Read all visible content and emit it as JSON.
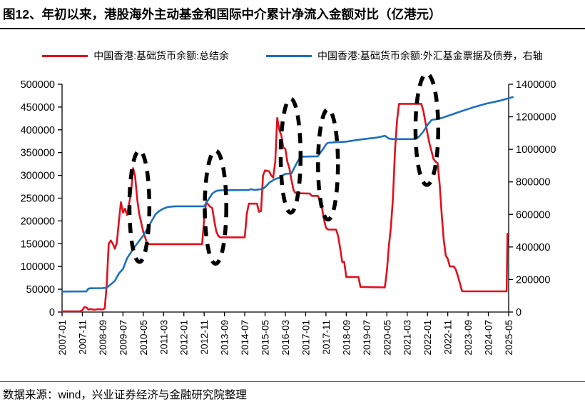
{
  "title": "图12、年初以来，港股海外主动基金和国际中介累计净流入金额对比（亿港元）",
  "footer": {
    "source": "数据来源：wind，兴业证券经济与金融研究院整理"
  },
  "legend": [
    {
      "label": "中国香港:基础货币余额:总结余",
      "color": "#e0101c"
    },
    {
      "label": "中国香港:基础货币余额:外汇基金票据及债券，右轴",
      "color": "#1d6fc0"
    }
  ],
  "chart_data": {
    "type": "line",
    "x_unit": "months since 2007-01",
    "x_tick_months": [
      0,
      10,
      20,
      30,
      40,
      50,
      60,
      70,
      80,
      90,
      100,
      110,
      120,
      130,
      140,
      150,
      160,
      170,
      180,
      190,
      200,
      210,
      220
    ],
    "x_tick_labels": [
      "2007-01",
      "2007-11",
      "2008-09",
      "2009-07",
      "2010-05",
      "2011-03",
      "2012-01",
      "2012-11",
      "2013-09",
      "2014-07",
      "2015-05",
      "2016-03",
      "2017-01",
      "2017-11",
      "2018-09",
      "2019-07",
      "2020-05",
      "2021-03",
      "2022-01",
      "2022-11",
      "2023-09",
      "2024-07",
      "2025-05"
    ],
    "left_axis": {
      "min": 0,
      "max": 500000,
      "step": 50000,
      "tick_labels": [
        "0",
        "50000",
        "100000",
        "150000",
        "200000",
        "250000",
        "300000",
        "350000",
        "400000",
        "450000",
        "500000"
      ]
    },
    "right_axis": {
      "min": 0,
      "max": 1400000,
      "step": 200000,
      "tick_labels": [
        "0",
        "200000",
        "400000",
        "600000",
        "800000",
        "1000000",
        "1200000",
        "1400000"
      ]
    },
    "grid": false,
    "legend_position": "top",
    "series": [
      {
        "name": "中国香港:基础货币余额:总结余",
        "axis": "left",
        "color": "#e0101c",
        "points": [
          [
            0,
            1500
          ],
          [
            9,
            1800
          ],
          [
            10,
            4000
          ],
          [
            11,
            11000
          ],
          [
            12,
            10000
          ],
          [
            13,
            5500
          ],
          [
            14,
            6500
          ],
          [
            16,
            5000
          ],
          [
            18,
            6500
          ],
          [
            20,
            5500
          ],
          [
            21,
            8000
          ],
          [
            22,
            60000
          ],
          [
            23,
            150000
          ],
          [
            24,
            157000
          ],
          [
            25,
            150000
          ],
          [
            26,
            139000
          ],
          [
            27,
            152000
          ],
          [
            28,
            200000
          ],
          [
            29,
            241000
          ],
          [
            30,
            218000
          ],
          [
            31,
            227000
          ],
          [
            32,
            213000
          ],
          [
            34,
            262000
          ],
          [
            35,
            316000
          ],
          [
            36,
            298000
          ],
          [
            37,
            248000
          ],
          [
            38,
            216000
          ],
          [
            40,
            176000
          ],
          [
            42,
            150000
          ],
          [
            43,
            149000
          ],
          [
            69,
            149000
          ],
          [
            70,
            205000
          ],
          [
            71,
            241000
          ],
          [
            72,
            236000
          ],
          [
            73,
            231000
          ],
          [
            74,
            228000
          ],
          [
            75,
            200000
          ],
          [
            76,
            176000
          ],
          [
            77,
            167000
          ],
          [
            78,
            164000
          ],
          [
            90,
            164000
          ],
          [
            91,
            215000
          ],
          [
            92,
            238000
          ],
          [
            96,
            238000
          ],
          [
            97,
            220000
          ],
          [
            98,
            222000
          ],
          [
            99,
            300000
          ],
          [
            100,
            311000
          ],
          [
            102,
            309000
          ],
          [
            103,
            300000
          ],
          [
            104,
            295000
          ],
          [
            105,
            330000
          ],
          [
            106,
            426000
          ],
          [
            107,
            400000
          ],
          [
            108,
            388000
          ],
          [
            109,
            361000
          ],
          [
            110,
            358000
          ],
          [
            111,
            330000
          ],
          [
            112,
            315000
          ],
          [
            113,
            290000
          ],
          [
            114,
            268000
          ],
          [
            115,
            261000
          ],
          [
            122,
            260000
          ],
          [
            123,
            255000
          ],
          [
            126,
            255000
          ],
          [
            127,
            247000
          ],
          [
            128,
            230000
          ],
          [
            129,
            203000
          ],
          [
            130,
            185000
          ],
          [
            131,
            181000
          ],
          [
            135,
            181000
          ],
          [
            136,
            167000
          ],
          [
            137,
            140000
          ],
          [
            138,
            110000
          ],
          [
            139,
            110000
          ],
          [
            140,
            77000
          ],
          [
            146,
            77000
          ],
          [
            147,
            55000
          ],
          [
            159,
            54000
          ],
          [
            160,
            90000
          ],
          [
            161,
            145000
          ],
          [
            162,
            188000
          ],
          [
            163,
            250000
          ],
          [
            164,
            355000
          ],
          [
            165,
            420000
          ],
          [
            166,
            457000
          ],
          [
            177,
            457000
          ],
          [
            178,
            441000
          ],
          [
            180,
            392000
          ],
          [
            181,
            370000
          ],
          [
            183,
            336000
          ],
          [
            184,
            330000
          ],
          [
            185,
            327000
          ],
          [
            186,
            280000
          ],
          [
            187,
            215000
          ],
          [
            188,
            160000
          ],
          [
            189,
            124000
          ],
          [
            190,
            117000
          ],
          [
            191,
            100000
          ],
          [
            193,
            100000
          ],
          [
            194,
            93000
          ],
          [
            195,
            78500
          ],
          [
            196,
            63000
          ],
          [
            197,
            46000
          ],
          [
            198,
            45500
          ],
          [
            219,
            45500
          ],
          [
            219.4,
            172000
          ],
          [
            220,
            172000
          ]
        ]
      },
      {
        "name": "中国香港:基础货币余额:外汇基金票据及债券，右轴",
        "axis": "right",
        "color": "#1d6fc0",
        "points": [
          [
            0,
            126000
          ],
          [
            12,
            127000
          ],
          [
            13,
            144000
          ],
          [
            14,
            146000
          ],
          [
            20,
            147000
          ],
          [
            22,
            150000
          ],
          [
            24,
            170000
          ],
          [
            26,
            192000
          ],
          [
            28,
            237000
          ],
          [
            30,
            265000
          ],
          [
            32,
            330000
          ],
          [
            34,
            368000
          ],
          [
            36,
            404000
          ],
          [
            38,
            437000
          ],
          [
            40,
            470000
          ],
          [
            43,
            535000
          ],
          [
            46,
            601000
          ],
          [
            48,
            622000
          ],
          [
            50,
            636000
          ],
          [
            52,
            645000
          ],
          [
            54,
            648000
          ],
          [
            56,
            650000
          ],
          [
            70,
            650000
          ],
          [
            72,
            690000
          ],
          [
            74,
            728000
          ],
          [
            76,
            745000
          ],
          [
            78,
            748000
          ],
          [
            92,
            750000
          ],
          [
            93,
            755000
          ],
          [
            95,
            750000
          ],
          [
            99,
            757000
          ],
          [
            101,
            780000
          ],
          [
            102,
            795000
          ],
          [
            104,
            810000
          ],
          [
            105,
            818000
          ],
          [
            107,
            825000
          ],
          [
            109,
            843000
          ],
          [
            110,
            849000
          ],
          [
            113,
            852000
          ],
          [
            115,
            900000
          ],
          [
            116,
            925000
          ],
          [
            117,
            945000
          ],
          [
            118,
            955000
          ],
          [
            126,
            957000
          ],
          [
            127,
            975000
          ],
          [
            129,
            1010000
          ],
          [
            130,
            1030000
          ],
          [
            131,
            1040000
          ],
          [
            134,
            1043000
          ],
          [
            140,
            1047000
          ],
          [
            145,
            1057000
          ],
          [
            150,
            1065000
          ],
          [
            155,
            1072000
          ],
          [
            158,
            1080000
          ],
          [
            159,
            1084000
          ],
          [
            160,
            1075000
          ],
          [
            161,
            1066000
          ],
          [
            163,
            1063000
          ],
          [
            174,
            1063000
          ],
          [
            176,
            1080000
          ],
          [
            178,
            1110000
          ],
          [
            180,
            1150000
          ],
          [
            182,
            1180000
          ],
          [
            183,
            1183000
          ],
          [
            185,
            1186000
          ],
          [
            187,
            1193000
          ],
          [
            190,
            1205000
          ],
          [
            195,
            1227000
          ],
          [
            202,
            1256000
          ],
          [
            209,
            1281000
          ],
          [
            216,
            1300000
          ],
          [
            222,
            1321000
          ]
        ]
      }
    ],
    "annotations": {
      "dashed_ellipses_black": [
        {
          "center_month": 38.1,
          "center_left_value": 232000,
          "radius_months": 4.9,
          "radius_left_value": 122000
        },
        {
          "center_month": 75.6,
          "center_left_value": 230000,
          "radius_months": 5.3,
          "radius_left_value": 124000
        },
        {
          "center_month": 112.6,
          "center_left_value": 343000,
          "radius_months": 4.9,
          "radius_left_value": 125000
        },
        {
          "center_month": 131.0,
          "center_left_value": 324000,
          "radius_months": 4.9,
          "radius_left_value": 121000
        },
        {
          "center_month": 179.7,
          "center_left_value": 401000,
          "radius_months": 5.6,
          "radius_left_value": 122000
        }
      ]
    }
  }
}
